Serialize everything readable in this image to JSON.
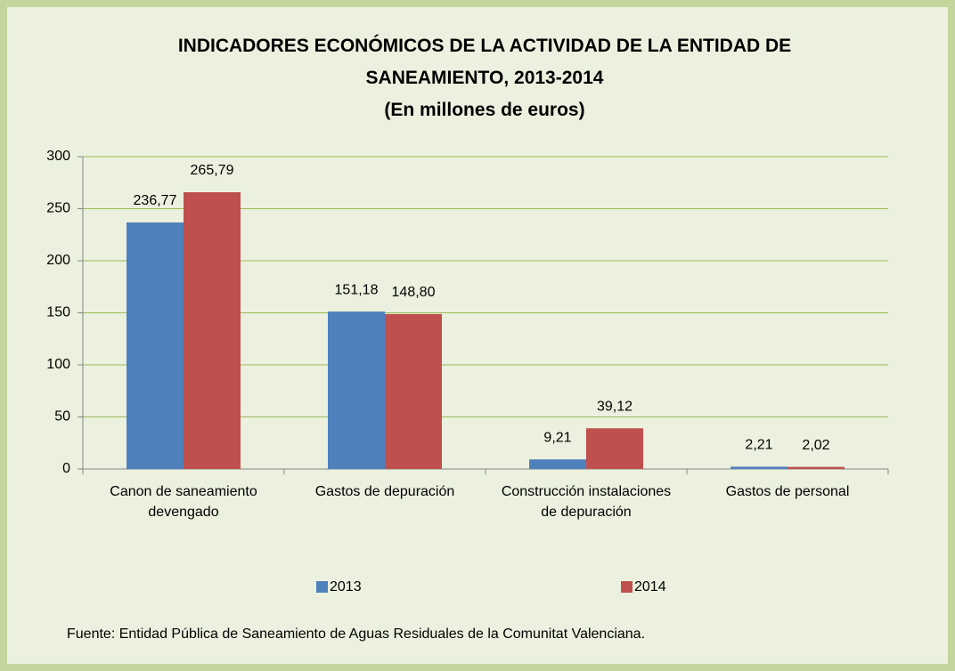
{
  "chart_data": {
    "type": "bar",
    "title": "INDICADORES ECONÓMICOS DE LA ACTIVIDAD DE LA ENTIDAD DE SANEAMIENTO, 2013-2014",
    "subtitle": "(En millones de euros)",
    "categories": [
      "Canon de saneamiento devengado",
      "Gastos de depuración",
      "Construcción instalaciones de depuración",
      "Gastos de personal"
    ],
    "series": [
      {
        "name": "2013",
        "color": "#4f81bd",
        "values": [
          236.77,
          151.18,
          9.21,
          2.21
        ],
        "value_labels": [
          "236,77",
          "151,18",
          "9,21",
          "2,21"
        ]
      },
      {
        "name": "2014",
        "color": "#c0504d",
        "values": [
          265.79,
          148.8,
          39.12,
          2.02
        ],
        "value_labels": [
          "265,79",
          "148,80",
          "39,12",
          "2,02"
        ]
      }
    ],
    "ylim": [
      0,
      300
    ],
    "yticks": [
      0,
      50,
      100,
      150,
      200,
      250,
      300
    ],
    "grid": true,
    "legend": "bottom",
    "source": "Fuente:  Entidad Pública de Saneamiento de Aguas Residuales de la Comunitat Valenciana."
  }
}
